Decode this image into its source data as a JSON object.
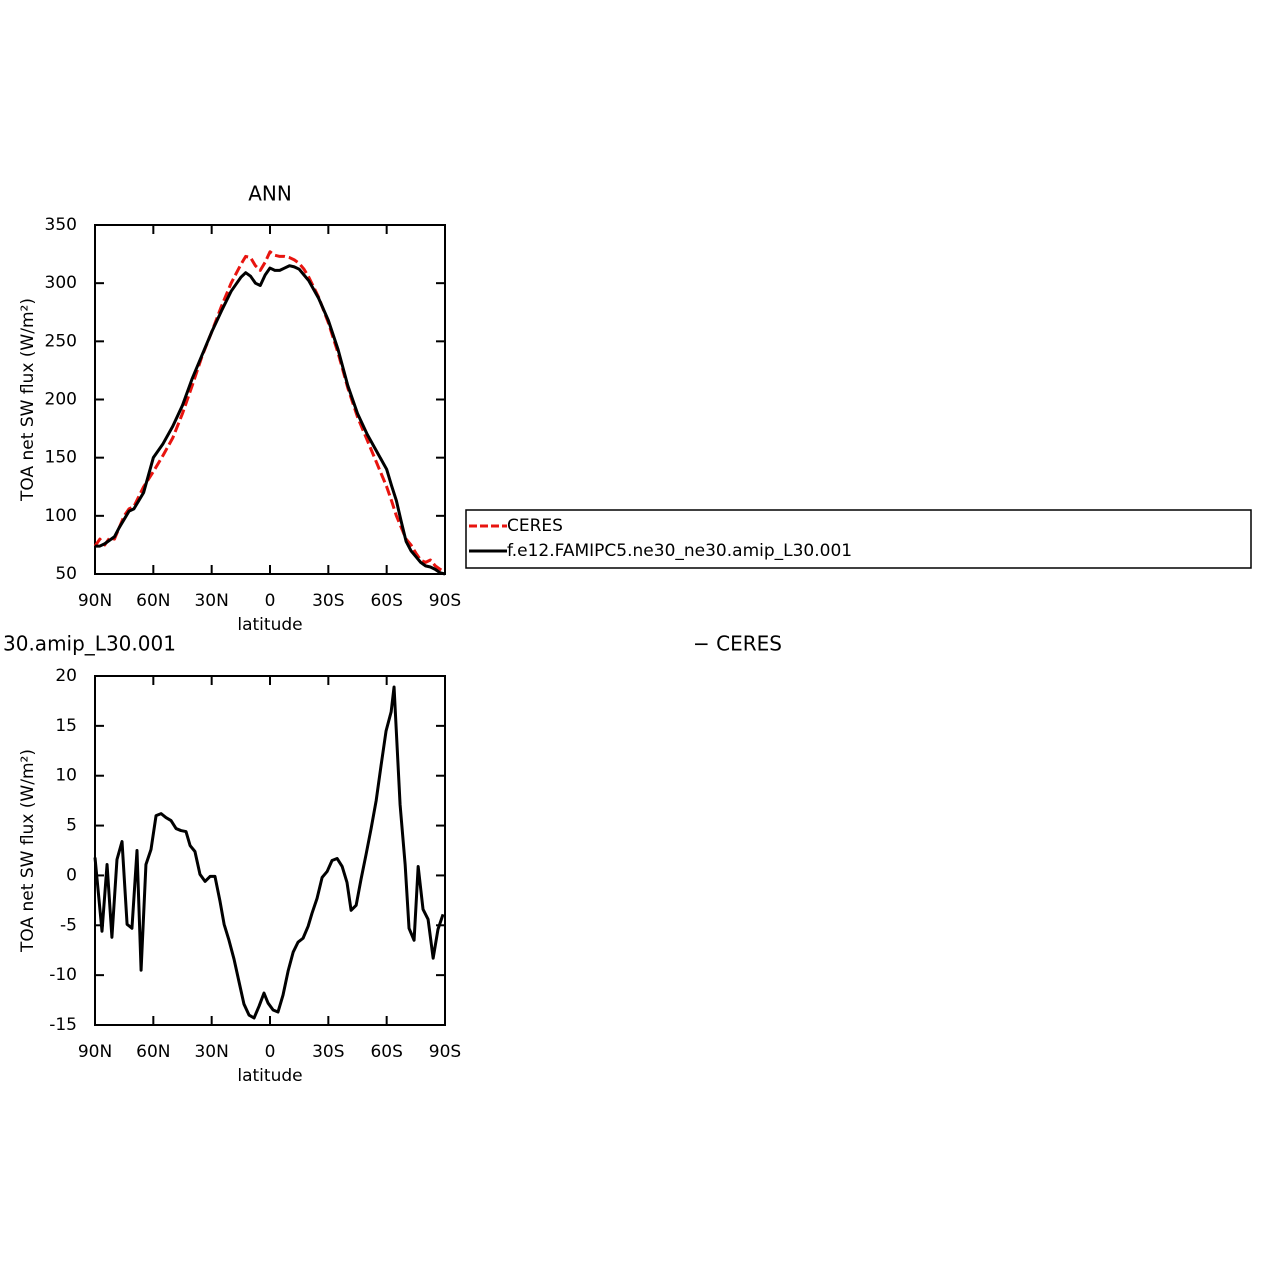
{
  "chart_data": [
    {
      "type": "line",
      "title": "ANN",
      "xlabel": "latitude",
      "ylabel": "TOA net SW flux (W/m²)",
      "xlim": [
        90,
        -90
      ],
      "xticks": [
        {
          "value": 90,
          "label": "90N"
        },
        {
          "value": 60,
          "label": "60N"
        },
        {
          "value": 30,
          "label": "30N"
        },
        0,
        {
          "value": -30,
          "label": "30S"
        },
        {
          "value": -60,
          "label": "60S"
        },
        {
          "value": -90,
          "label": "90S"
        }
      ],
      "ylim": [
        50,
        350
      ],
      "yticks": [
        50,
        100,
        150,
        200,
        250,
        300,
        350
      ],
      "legend": "right",
      "x": [
        90,
        87.5,
        85,
        82.5,
        80,
        77.5,
        75,
        72.5,
        70,
        65,
        60,
        55,
        50,
        45,
        40,
        35,
        30,
        25,
        20,
        17.5,
        15,
        12.5,
        10,
        7.5,
        5,
        2.5,
        0,
        -2.5,
        -5,
        -7.5,
        -10,
        -12.5,
        -15,
        -17.5,
        -20,
        -25,
        -30,
        -35,
        -40,
        -45,
        -50,
        -55,
        -60,
        -62.5,
        -65,
        -67.5,
        -70,
        -72.5,
        -75,
        -77.5,
        -80,
        -82.5,
        -85,
        -87.5,
        -90
      ],
      "series": [
        {
          "name": "CERES",
          "color": "#e8140f",
          "dashed": true,
          "values": [
            74,
            80,
            75,
            81,
            80,
            90,
            100,
            106,
            108,
            125,
            138,
            152,
            167,
            188,
            212,
            237,
            258,
            280,
            300,
            308,
            316,
            323,
            322,
            315,
            311,
            318,
            327,
            324,
            323,
            323,
            322,
            320,
            317,
            312,
            305,
            288,
            266,
            240,
            210,
            185,
            165,
            145,
            125,
            113,
            100,
            90,
            80,
            75,
            68,
            62,
            60,
            62,
            57,
            54,
            52
          ]
        },
        {
          "name": "f.e12.FAMIPC5.ne30_ne30.amip_L30.001",
          "color": "#000000",
          "dashed": false,
          "values": [
            74,
            74,
            76,
            79,
            82,
            90,
            97,
            104,
            106,
            120,
            150,
            162,
            177,
            195,
            218,
            238,
            258,
            276,
            293,
            299,
            305,
            309,
            306,
            300,
            298,
            307,
            313,
            311,
            311,
            313,
            315,
            314,
            312,
            307,
            302,
            287,
            268,
            243,
            212,
            188,
            170,
            155,
            140,
            126,
            113,
            95,
            78,
            70,
            65,
            60,
            57,
            56,
            54,
            51,
            50
          ]
        }
      ]
    },
    {
      "type": "line",
      "title": "30.amip_L30.001",
      "title_right": "− CERES",
      "xlabel": "latitude",
      "ylabel": "TOA net SW flux (W/m²)",
      "xlim": [
        90,
        -90
      ],
      "xticks": [
        {
          "value": 90,
          "label": "90N"
        },
        {
          "value": 60,
          "label": "60N"
        },
        {
          "value": 30,
          "label": "30N"
        },
        0,
        {
          "value": -30,
          "label": "30S"
        },
        {
          "value": -60,
          "label": "60S"
        },
        {
          "value": -90,
          "label": "90S"
        }
      ],
      "ylim": [
        -15,
        20
      ],
      "yticks": [
        -15,
        -10,
        -5,
        0,
        5,
        10,
        15,
        20
      ],
      "x": [
        90,
        86.4,
        83.8,
        81.3,
        78.7,
        76.1,
        73.5,
        71.0,
        68.4,
        66.3,
        63.8,
        61.2,
        58.6,
        56.0,
        53.5,
        50.9,
        48.3,
        45.8,
        43.2,
        41.1,
        38.6,
        36.0,
        33.4,
        30.8,
        28.3,
        25.7,
        23.6,
        21.1,
        18.5,
        15.9,
        13.4,
        10.8,
        8.2,
        5.6,
        3.1,
        1.0,
        -1.6,
        -4.1,
        -6.7,
        -9.3,
        -11.9,
        -14.4,
        -17.0,
        -19.6,
        -21.6,
        -24.2,
        -26.8,
        -29.4,
        -31.9,
        -34.5,
        -37.1,
        -39.6,
        -41.7,
        -44.3,
        -46.8,
        -49.4,
        -52.0,
        -54.6,
        -57.1,
        -59.7,
        -62.3,
        -63.8,
        -66.9,
        -69.5,
        -71.5,
        -74.1,
        -76.2,
        -78.7,
        -81.3,
        -83.9,
        -86.4,
        -89.0
      ],
      "series": [
        {
          "color": "#000000",
          "dashed": false,
          "values": [
            1.8,
            -5.6,
            1.1,
            -6.2,
            1.6,
            3.4,
            -4.9,
            -5.3,
            2.5,
            -9.5,
            1.1,
            2.6,
            6.0,
            6.2,
            5.8,
            5.5,
            4.7,
            4.5,
            4.4,
            3.0,
            2.4,
            0.1,
            -0.6,
            -0.1,
            -0.1,
            -2.6,
            -4.9,
            -6.5,
            -8.4,
            -10.7,
            -12.9,
            -14.0,
            -14.3,
            -13.1,
            -11.8,
            -12.8,
            -13.5,
            -13.7,
            -12.0,
            -9.6,
            -7.7,
            -6.7,
            -6.3,
            -5.1,
            -3.8,
            -2.3,
            -0.2,
            0.4,
            1.5,
            1.7,
            0.9,
            -0.7,
            -3.5,
            -3.0,
            -0.4,
            2.1,
            4.7,
            7.5,
            11.0,
            14.5,
            16.4,
            18.9,
            7.1,
            1.1,
            -5.3,
            -6.5,
            0.9,
            -3.4,
            -4.4,
            -8.3,
            -5.4,
            -3.9
          ]
        }
      ]
    }
  ]
}
